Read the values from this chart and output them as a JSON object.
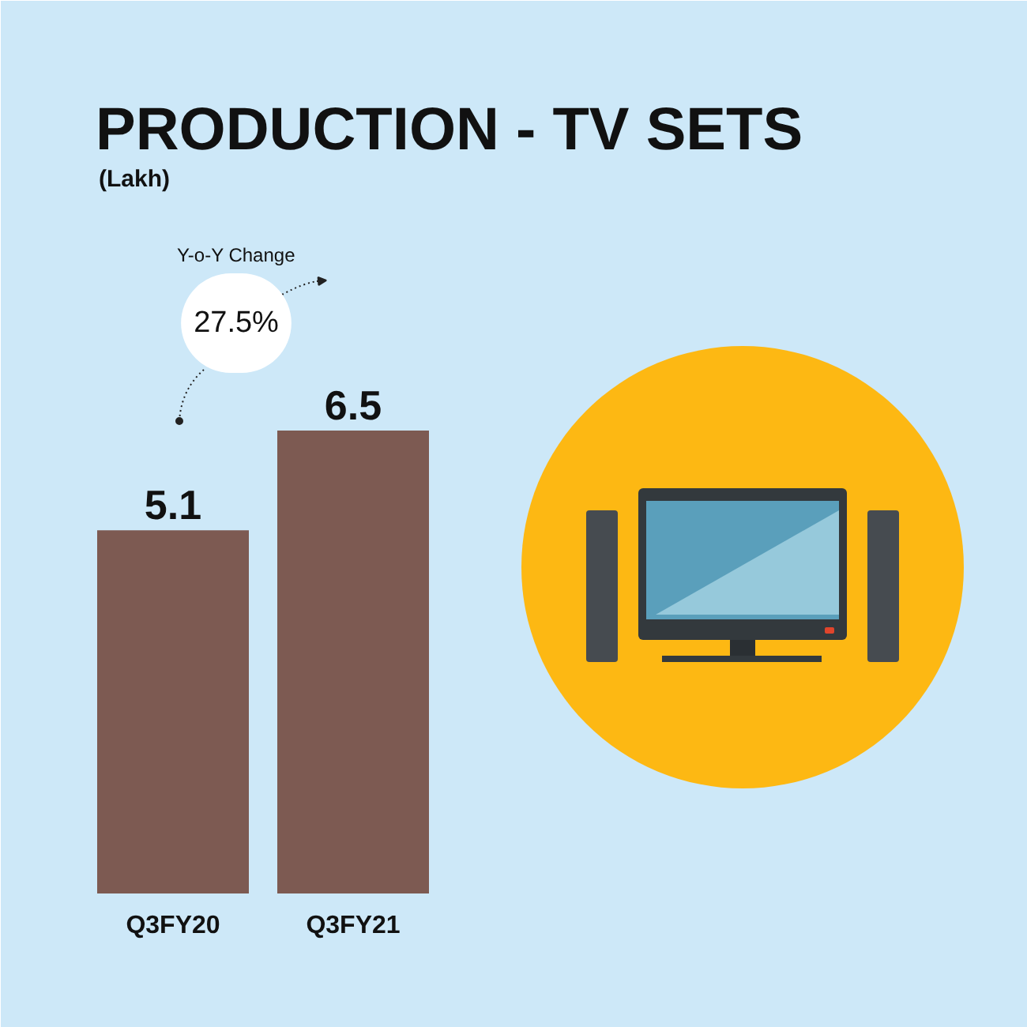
{
  "chart_data": {
    "type": "bar",
    "title": "PRODUCTION - TV SETS",
    "subtitle": "(Lakh)",
    "categories": [
      "Q3FY20",
      "Q3FY21"
    ],
    "values": [
      5.1,
      6.5
    ],
    "color": "#7d5a52",
    "data_labels": true,
    "annotations": [
      "Y-o-Y Change",
      "27.5%"
    ]
  }
}
